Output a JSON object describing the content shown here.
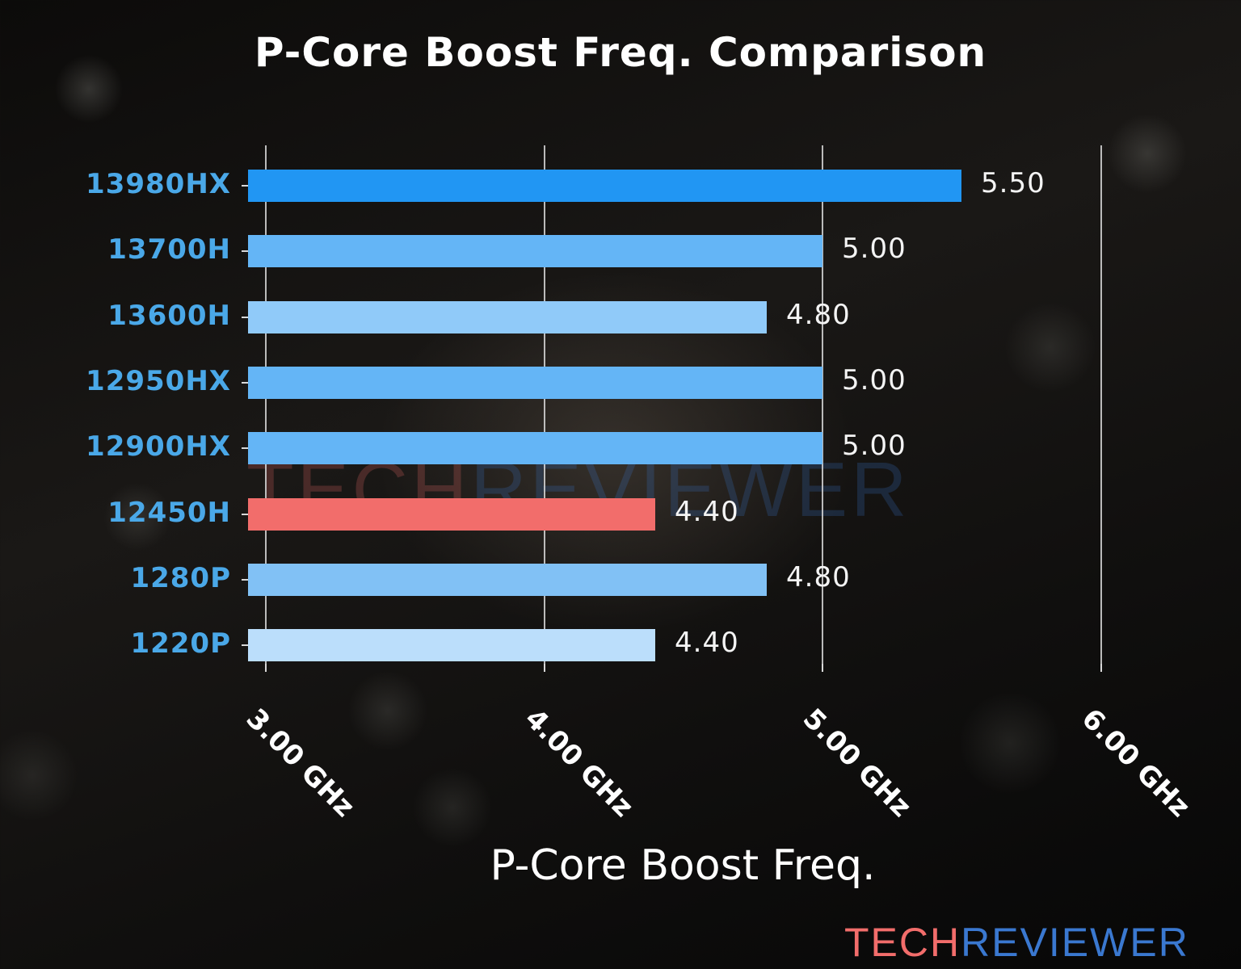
{
  "chart_data": {
    "type": "bar",
    "orientation": "horizontal",
    "title": "P-Core Boost Freq. Comparison",
    "xlabel": "P-Core Boost Freq.",
    "ylabel": "",
    "categories": [
      "13980HX",
      "13700H",
      "13600H",
      "12950HX",
      "12900HX",
      "12450H",
      "1280P",
      "1220P"
    ],
    "values": [
      5.5,
      5.0,
      4.8,
      5.0,
      5.0,
      4.4,
      4.8,
      4.4
    ],
    "value_labels": [
      "5.50",
      "5.00",
      "4.80",
      "5.00",
      "5.00",
      "4.40",
      "4.80",
      "4.40"
    ],
    "bar_colors": [
      "#2196f3",
      "#64b5f6",
      "#90caf9",
      "#64b5f6",
      "#64b5f6",
      "#f26d6b",
      "#81c1f5",
      "#bbdefb"
    ],
    "highlighted": "12450H",
    "xlim": [
      3.0,
      6.0
    ],
    "xticks": [
      3.0,
      4.0,
      5.0,
      6.0
    ],
    "xtick_labels": [
      "3.00 GHz",
      "4.00 GHz",
      "5.00 GHz",
      "6.00 GHz"
    ],
    "grid": "vertical",
    "legend": "none"
  },
  "watermark": {
    "part1": "TECH",
    "part2": "REVIEWER"
  },
  "logo": {
    "part1": "TECH",
    "part2": "REVIEWER",
    "color1": "#f26d6b",
    "color2": "#3a78d0"
  }
}
